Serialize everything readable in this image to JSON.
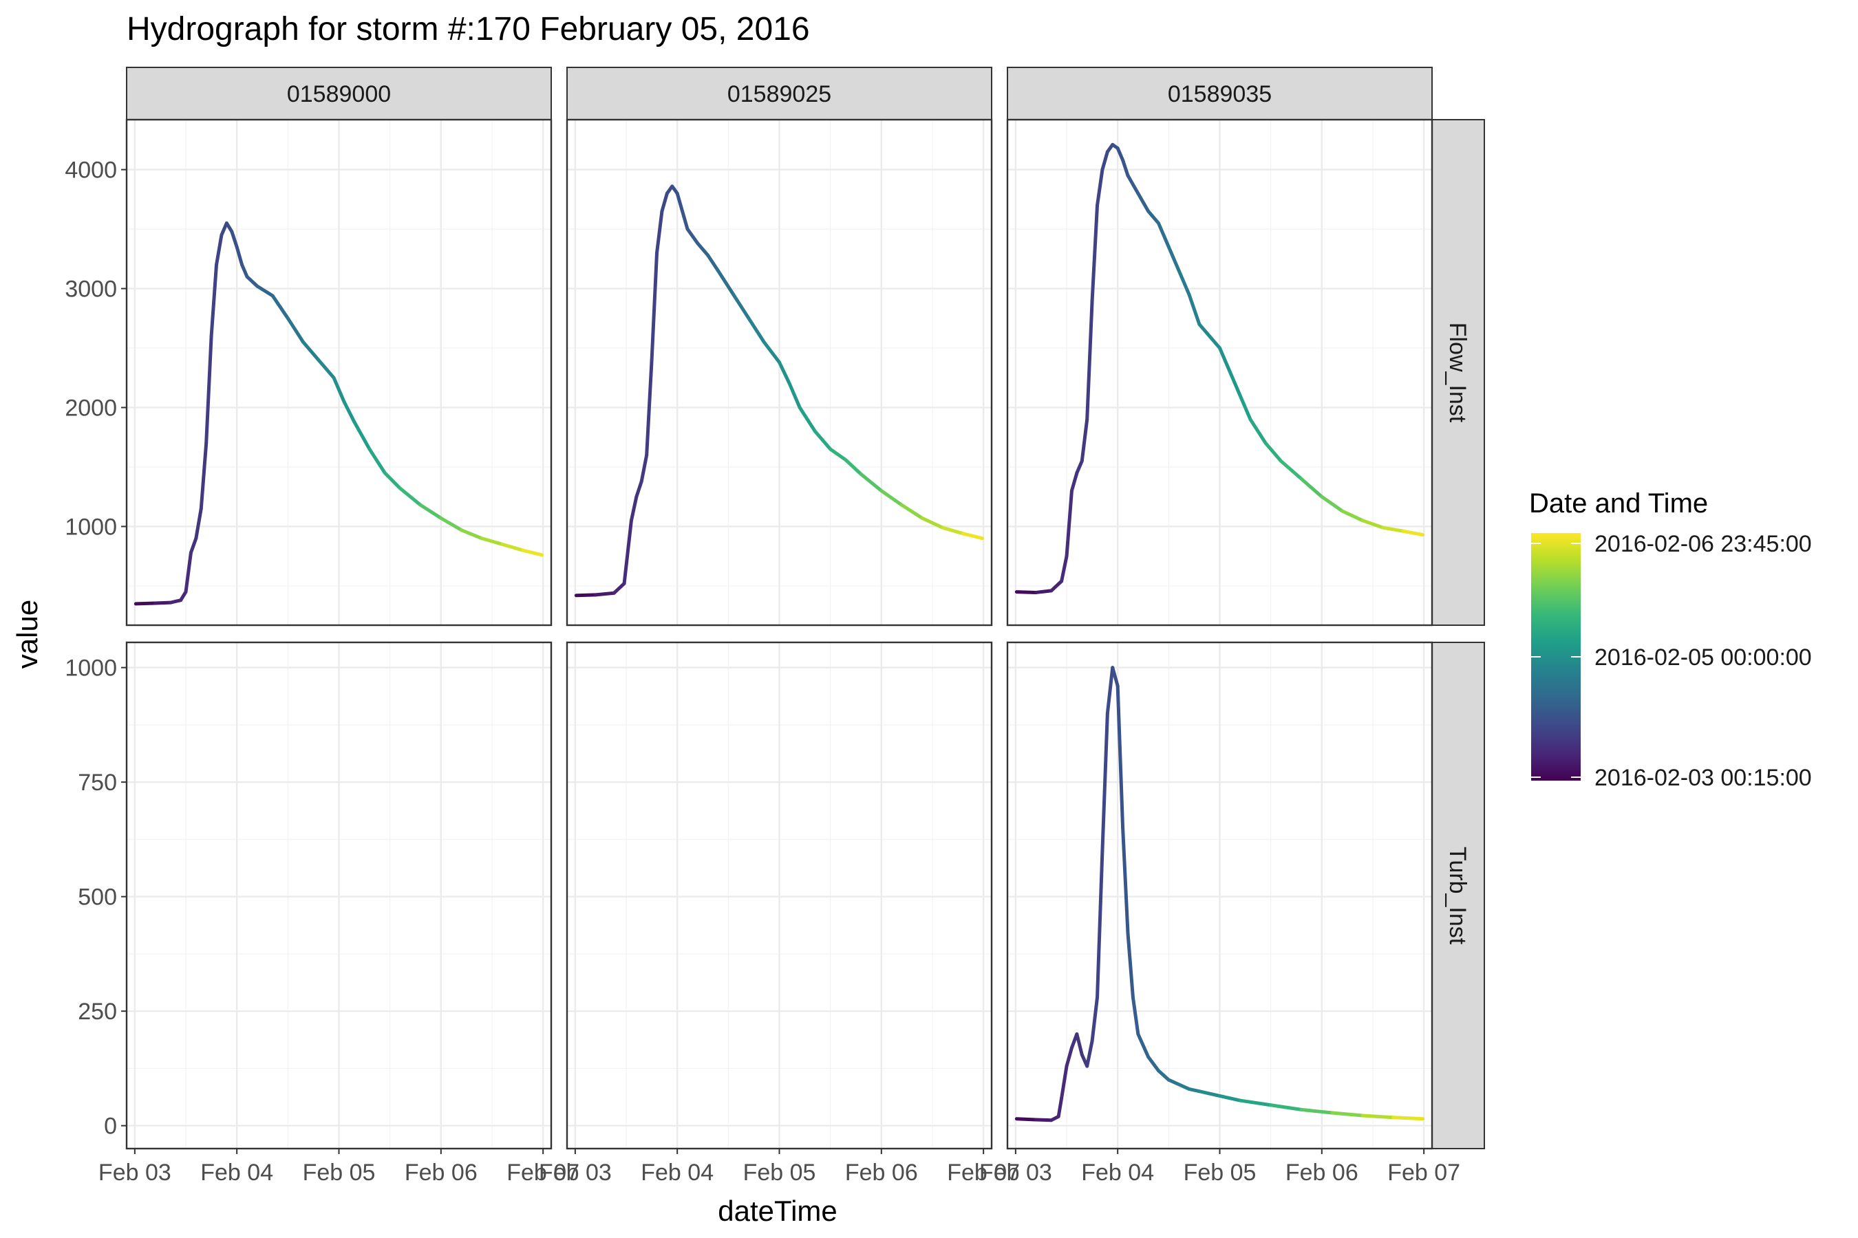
{
  "title": "Hydrograph for storm #:170   February 05, 2016",
  "xlabel": "dateTime",
  "ylabel": "value",
  "legend": {
    "title": "Date and Time",
    "labels": [
      "2016-02-06 23:45:00",
      "2016-02-05 00:00:00",
      "2016-02-03 00:15:00"
    ],
    "position": "right",
    "colors": [
      "#fde725",
      "#b5de2b",
      "#6ece58",
      "#35b779",
      "#1f9e89",
      "#26828e",
      "#31688e",
      "#3e4989",
      "#482878",
      "#440154"
    ]
  },
  "chart_data": {
    "type": "line",
    "facet_columns": [
      "01589000",
      "01589025",
      "01589035"
    ],
    "facet_rows": [
      "Flow_Inst",
      "Turb_Inst"
    ],
    "x_ticks": [
      "Feb 03",
      "Feb 04",
      "Feb 05",
      "Feb 06",
      "Feb 07"
    ],
    "x_range_days": [
      -0.08,
      4.08
    ],
    "y_axes": {
      "Flow_Inst": {
        "ticks": [
          1000,
          2000,
          3000,
          4000
        ],
        "range": [
          170,
          4420
        ]
      },
      "Turb_Inst": {
        "ticks": [
          0,
          250,
          500,
          750,
          1000
        ],
        "range": [
          -50,
          1055
        ]
      }
    },
    "x_unit": "days since Feb 03 00:00",
    "series": [
      {
        "site": "01589000",
        "variable": "Flow_Inst",
        "points": [
          [
            0.01,
            350
          ],
          [
            0.2,
            355
          ],
          [
            0.35,
            360
          ],
          [
            0.45,
            380
          ],
          [
            0.5,
            450
          ],
          [
            0.55,
            780
          ],
          [
            0.6,
            900
          ],
          [
            0.65,
            1150
          ],
          [
            0.7,
            1700
          ],
          [
            0.75,
            2600
          ],
          [
            0.8,
            3200
          ],
          [
            0.85,
            3450
          ],
          [
            0.9,
            3550
          ],
          [
            0.95,
            3480
          ],
          [
            1.0,
            3350
          ],
          [
            1.05,
            3200
          ],
          [
            1.1,
            3100
          ],
          [
            1.2,
            3020
          ],
          [
            1.35,
            2940
          ],
          [
            1.5,
            2750
          ],
          [
            1.65,
            2550
          ],
          [
            1.8,
            2400
          ],
          [
            1.95,
            2250
          ],
          [
            2.05,
            2050
          ],
          [
            2.15,
            1880
          ],
          [
            2.3,
            1650
          ],
          [
            2.45,
            1450
          ],
          [
            2.6,
            1320
          ],
          [
            2.8,
            1180
          ],
          [
            3.0,
            1070
          ],
          [
            3.2,
            970
          ],
          [
            3.4,
            900
          ],
          [
            3.6,
            850
          ],
          [
            3.8,
            800
          ],
          [
            3.99,
            760
          ]
        ]
      },
      {
        "site": "01589025",
        "variable": "Flow_Inst",
        "points": [
          [
            0.01,
            420
          ],
          [
            0.2,
            425
          ],
          [
            0.38,
            440
          ],
          [
            0.48,
            520
          ],
          [
            0.55,
            1050
          ],
          [
            0.6,
            1250
          ],
          [
            0.65,
            1380
          ],
          [
            0.7,
            1600
          ],
          [
            0.75,
            2400
          ],
          [
            0.8,
            3300
          ],
          [
            0.85,
            3650
          ],
          [
            0.9,
            3800
          ],
          [
            0.95,
            3860
          ],
          [
            1.0,
            3800
          ],
          [
            1.05,
            3650
          ],
          [
            1.1,
            3500
          ],
          [
            1.2,
            3380
          ],
          [
            1.3,
            3280
          ],
          [
            1.4,
            3150
          ],
          [
            1.55,
            2950
          ],
          [
            1.7,
            2750
          ],
          [
            1.85,
            2550
          ],
          [
            2.0,
            2380
          ],
          [
            2.1,
            2200
          ],
          [
            2.2,
            2000
          ],
          [
            2.35,
            1800
          ],
          [
            2.5,
            1650
          ],
          [
            2.65,
            1560
          ],
          [
            2.8,
            1440
          ],
          [
            3.0,
            1300
          ],
          [
            3.2,
            1180
          ],
          [
            3.4,
            1070
          ],
          [
            3.6,
            990
          ],
          [
            3.8,
            940
          ],
          [
            3.99,
            900
          ]
        ]
      },
      {
        "site": "01589035",
        "variable": "Flow_Inst",
        "points": [
          [
            0.01,
            450
          ],
          [
            0.2,
            445
          ],
          [
            0.35,
            460
          ],
          [
            0.45,
            540
          ],
          [
            0.5,
            750
          ],
          [
            0.55,
            1300
          ],
          [
            0.6,
            1450
          ],
          [
            0.65,
            1550
          ],
          [
            0.7,
            1900
          ],
          [
            0.75,
            2900
          ],
          [
            0.8,
            3700
          ],
          [
            0.85,
            4000
          ],
          [
            0.9,
            4150
          ],
          [
            0.95,
            4210
          ],
          [
            1.0,
            4180
          ],
          [
            1.05,
            4080
          ],
          [
            1.1,
            3950
          ],
          [
            1.2,
            3800
          ],
          [
            1.3,
            3650
          ],
          [
            1.4,
            3550
          ],
          [
            1.5,
            3350
          ],
          [
            1.6,
            3150
          ],
          [
            1.7,
            2950
          ],
          [
            1.8,
            2700
          ],
          [
            1.9,
            2600
          ],
          [
            2.0,
            2500
          ],
          [
            2.1,
            2300
          ],
          [
            2.2,
            2100
          ],
          [
            2.3,
            1900
          ],
          [
            2.45,
            1700
          ],
          [
            2.6,
            1550
          ],
          [
            2.8,
            1400
          ],
          [
            3.0,
            1250
          ],
          [
            3.2,
            1130
          ],
          [
            3.4,
            1050
          ],
          [
            3.6,
            990
          ],
          [
            3.8,
            960
          ],
          [
            3.99,
            930
          ]
        ]
      },
      {
        "site": "01589035",
        "variable": "Turb_Inst",
        "points": [
          [
            0.01,
            15
          ],
          [
            0.2,
            13
          ],
          [
            0.35,
            12
          ],
          [
            0.42,
            20
          ],
          [
            0.45,
            60
          ],
          [
            0.5,
            130
          ],
          [
            0.55,
            170
          ],
          [
            0.6,
            200
          ],
          [
            0.65,
            155
          ],
          [
            0.7,
            130
          ],
          [
            0.75,
            185
          ],
          [
            0.8,
            280
          ],
          [
            0.85,
            600
          ],
          [
            0.9,
            900
          ],
          [
            0.95,
            1000
          ],
          [
            1.0,
            960
          ],
          [
            1.05,
            650
          ],
          [
            1.1,
            420
          ],
          [
            1.15,
            280
          ],
          [
            1.2,
            200
          ],
          [
            1.3,
            150
          ],
          [
            1.4,
            120
          ],
          [
            1.5,
            100
          ],
          [
            1.6,
            90
          ],
          [
            1.7,
            80
          ],
          [
            1.8,
            75
          ],
          [
            2.0,
            65
          ],
          [
            2.2,
            55
          ],
          [
            2.5,
            45
          ],
          [
            2.8,
            35
          ],
          [
            3.1,
            28
          ],
          [
            3.4,
            22
          ],
          [
            3.7,
            18
          ],
          [
            3.99,
            15
          ]
        ]
      }
    ]
  }
}
